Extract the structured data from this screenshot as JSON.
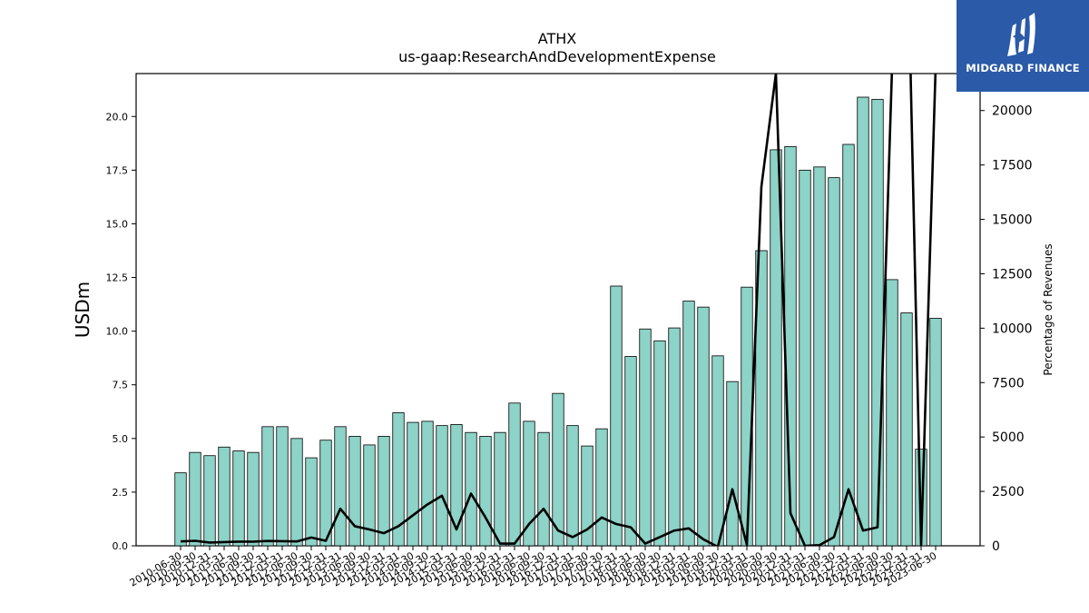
{
  "chart_data": {
    "type": "bar",
    "title": "ATHX",
    "subtitle": "us-gaap:ResearchAndDevelopmentExpense",
    "ylabel": "USDm",
    "y2label": "Percentage of Revenues",
    "ylim": [
      0,
      22
    ],
    "y2lim": [
      0,
      21700
    ],
    "yticks": [
      "0.0",
      "2.5",
      "5.0",
      "7.5",
      "10.0",
      "12.5",
      "15.0",
      "17.5",
      "20.0"
    ],
    "y2ticks": [
      "0",
      "2500",
      "5000",
      "7500",
      "10000",
      "12500",
      "15000",
      "17500",
      "20000"
    ],
    "categories": [
      "2010-06-30",
      "2010-09-30",
      "2010-12-31",
      "2011-03-31",
      "2011-06-30",
      "2011-09-30",
      "2011-12-31",
      "2012-03-31",
      "2012-06-30",
      "2012-09-30",
      "2012-12-31",
      "2013-03-31",
      "2013-06-30",
      "2013-09-30",
      "2013-12-31",
      "2014-03-31",
      "2014-06-30",
      "2014-09-30",
      "2014-12-31",
      "2015-03-31",
      "2015-06-30",
      "2015-09-30",
      "2015-12-31",
      "2016-03-31",
      "2016-06-30",
      "2016-09-30",
      "2016-12-31",
      "2017-03-31",
      "2017-06-30",
      "2017-09-30",
      "2017-12-31",
      "2018-03-31",
      "2018-06-30",
      "2018-09-30",
      "2018-12-31",
      "2019-03-31",
      "2019-06-30",
      "2019-09-30",
      "2019-12-31",
      "2020-03-31",
      "2020-06-30",
      "2020-09-30",
      "2020-12-31",
      "2021-03-31",
      "2021-06-30",
      "2021-09-30",
      "2021-12-31",
      "2022-03-31",
      "2022-06-30",
      "2022-09-30",
      "2022-12-31",
      "2023-03-31",
      "2023-06-30"
    ],
    "series": [
      {
        "kind": "bar",
        "axis": "left",
        "values": [
          3.4,
          4.35,
          4.2,
          4.6,
          4.42,
          4.35,
          5.55,
          5.55,
          5.0,
          4.1,
          4.92,
          5.55,
          5.1,
          4.7,
          5.1,
          6.2,
          5.75,
          5.8,
          5.6,
          5.65,
          5.28,
          5.1,
          5.28,
          6.65,
          5.8,
          5.28,
          7.1,
          5.6,
          4.65,
          5.45,
          12.1,
          8.82,
          10.1,
          9.55,
          10.15,
          11.4,
          11.12,
          8.85,
          7.65,
          12.05,
          13.75,
          18.45,
          18.6,
          17.5,
          17.65,
          17.15,
          18.7,
          20.9,
          20.8,
          12.4,
          10.85,
          4.5,
          10.6
        ]
      },
      {
        "kind": "line",
        "axis": "right",
        "values": [
          200,
          230,
          150,
          170,
          190,
          190,
          220,
          210,
          200,
          380,
          230,
          1700,
          900,
          750,
          580,
          900,
          1400,
          1900,
          2300,
          750,
          2400,
          1300,
          100,
          100,
          1000,
          1700,
          700,
          400,
          750,
          1300,
          1000,
          850,
          100,
          400,
          700,
          800,
          300,
          -50,
          2600,
          50,
          16500,
          21700,
          1500,
          0,
          30,
          400,
          2600,
          700,
          850,
          22000,
          30000,
          0,
          22000
        ]
      }
    ],
    "bar_color": "#8dd3c7",
    "line_color": "#000000",
    "logo": {
      "text": "MIDGARD FINANCE",
      "bg": "#2a5aa8"
    }
  }
}
